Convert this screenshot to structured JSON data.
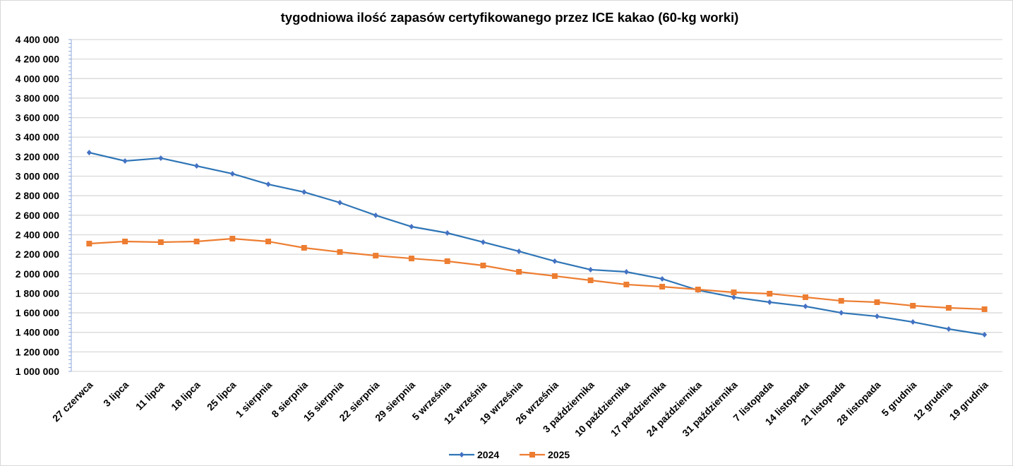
{
  "chart_data": {
    "type": "line",
    "title": "tygodniowa ilość zapasów certyfikowanego przez ICE kakao (60-kg worki)",
    "xlabel": "",
    "ylabel": "",
    "ylim": [
      1000000,
      4400000
    ],
    "ytick_step": 200000,
    "yticks": [
      "1 000 000",
      "1 200 000",
      "1 400 000",
      "1 600 000",
      "1 800 000",
      "2 000 000",
      "2 200 000",
      "2 400 000",
      "2 600 000",
      "2 800 000",
      "3 000 000",
      "3 200 000",
      "3 400 000",
      "3 600 000",
      "3 800 000",
      "4 000 000",
      "4 200 000",
      "4 400 000"
    ],
    "grid": true,
    "legend": "bottom",
    "categories": [
      "27 czerwca",
      "3 lipca",
      "11 lipca",
      "18 lipca",
      "25 lipca",
      "1 sierpnia",
      "8 sierpnia",
      "15 sierpnia",
      "22 sierpnia",
      "29 sierpnia",
      "5 września",
      "12 września",
      "19 września",
      "26 września",
      "3 października",
      "10 października",
      "17 października",
      "24 października",
      "31 października",
      "7 listopada",
      "14 listopada",
      "21 listopada",
      "28 listopada",
      "5 grudnia",
      "12 grudnia",
      "19 grudnia"
    ],
    "series": [
      {
        "name": "2024",
        "color": "#4472c4",
        "line_color": "#2e75b6",
        "marker": "diamond",
        "values": [
          3242000,
          3156000,
          3185000,
          3105000,
          3025000,
          2917000,
          2837000,
          2729000,
          2599000,
          2483000,
          2418000,
          2324000,
          2230000,
          2129000,
          2042000,
          2020000,
          1948000,
          1832000,
          1760000,
          1709000,
          1666000,
          1600000,
          1564000,
          1506000,
          1434000,
          1376000
        ]
      },
      {
        "name": "2025",
        "color": "#ed7d31",
        "line_color": "#ed7d31",
        "marker": "square",
        "values": [
          2309000,
          2331000,
          2324000,
          2331000,
          2360000,
          2331000,
          2266000,
          2223000,
          2186000,
          2157000,
          2129000,
          2085000,
          2020000,
          1977000,
          1933000,
          1890000,
          1868000,
          1839000,
          1810000,
          1796000,
          1760000,
          1723000,
          1709000,
          1673000,
          1651000,
          1637000
        ]
      }
    ]
  }
}
